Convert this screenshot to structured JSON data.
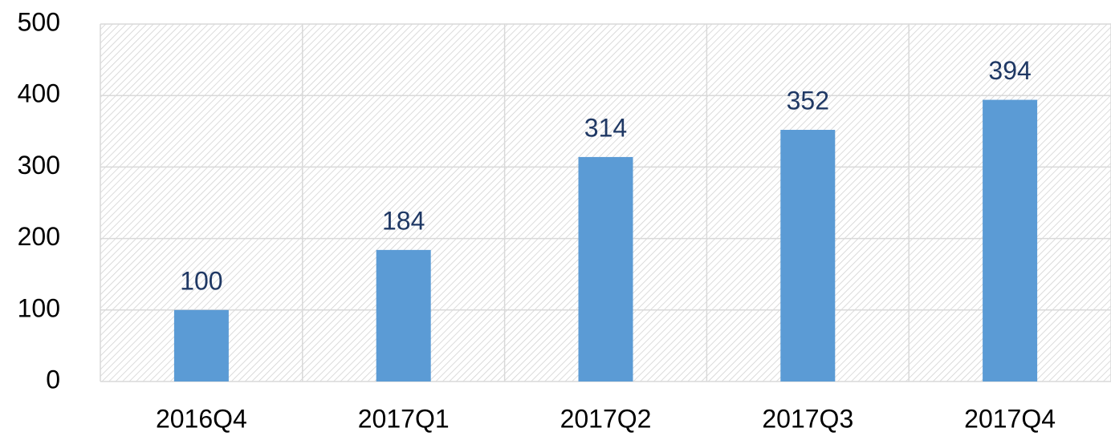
{
  "chart_data": {
    "type": "bar",
    "categories": [
      "2016Q4",
      "2017Q1",
      "2017Q2",
      "2017Q3",
      "2017Q4"
    ],
    "values": [
      100,
      184,
      314,
      352,
      394
    ],
    "color": "#5b9bd5",
    "label_color": "#1f3864",
    "ylim": [
      0,
      500
    ],
    "yticks": [
      0,
      100,
      200,
      300,
      400,
      500
    ],
    "grid": true
  }
}
